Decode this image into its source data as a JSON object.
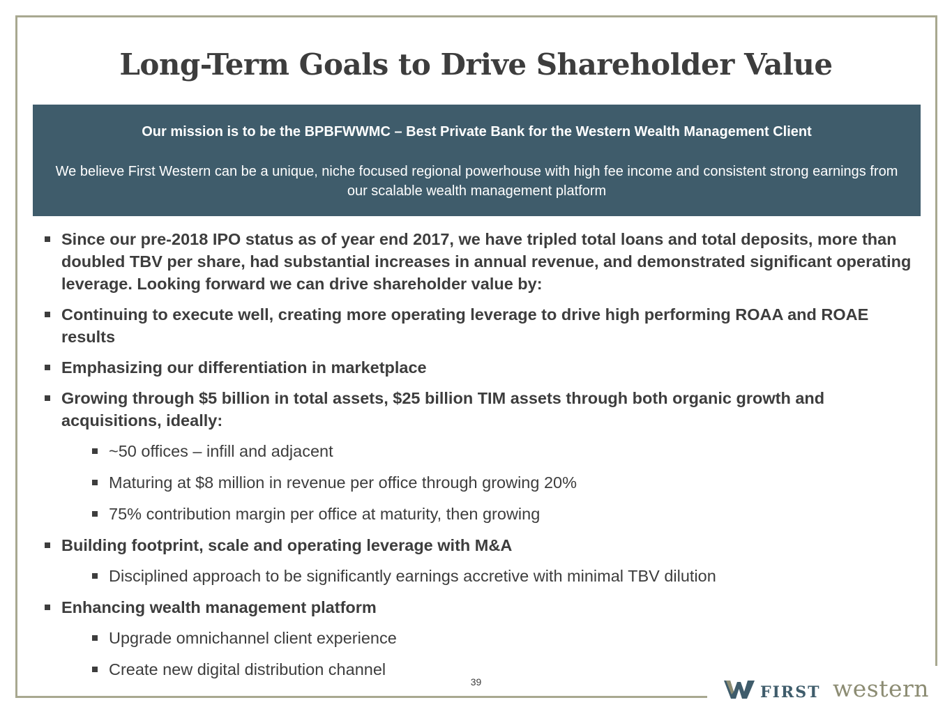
{
  "slide": {
    "title": "Long-Term Goals to Drive Shareholder Value",
    "page_number": "39"
  },
  "mission": {
    "headline": "Our mission is to be the BPBFWWMC – Best Private Bank for the Western Wealth Management Client",
    "body": "We believe First Western can be a unique, niche focused regional powerhouse with high fee income and consistent strong earnings from our scalable wealth management platform"
  },
  "bullets": [
    "Since our pre-2018 IPO status as of year end 2017, we have tripled total loans and total deposits, more than doubled TBV per share, had substantial increases in annual revenue, and demonstrated significant operating leverage. Looking forward we can drive shareholder value by:",
    "Continuing to execute well, creating more operating leverage to drive high performing ROAA and ROAE results",
    "Emphasizing our differentiation in marketplace",
    "Growing through $5 billion in total assets, $25 billion TIM assets through both organic growth and acquisitions, ideally:",
    "~50 offices – infill and adjacent",
    "Maturing at $8 million in revenue per office through growing 20%",
    "75% contribution margin per office at maturity, then growing",
    "Building footprint, scale and operating leverage with M&A",
    "Disciplined approach to be significantly earnings accretive with minimal TBV dilution",
    "Enhancing wealth management platform",
    "Upgrade omnichannel client experience",
    "Create new digital distribution channel"
  ],
  "logo": {
    "word1": "FIRST",
    "word2": "western"
  },
  "colors": {
    "mission_bg": "#3f5c6b",
    "frame": "#a8a890",
    "text": "#3d3d3d",
    "logo_olive": "#8c8c73"
  }
}
